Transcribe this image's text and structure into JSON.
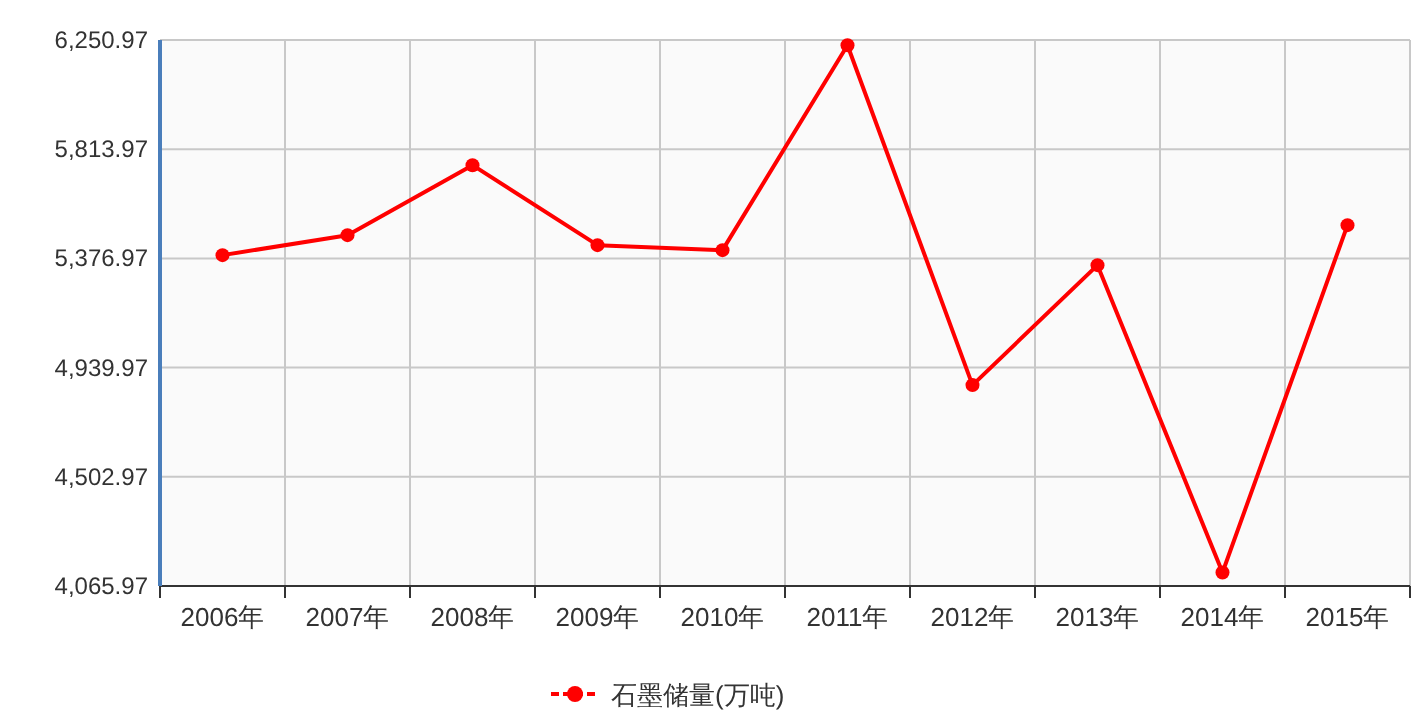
{
  "chart_data": {
    "type": "line",
    "categories": [
      "2006年",
      "2007年",
      "2008年",
      "2009年",
      "2010年",
      "2011年",
      "2012年",
      "2013年",
      "2014年",
      "2015年"
    ],
    "series": [
      {
        "name": "石墨储量(万吨)",
        "color": "#ff0000",
        "values": [
          5390,
          5470,
          5750,
          5430,
          5410,
          6230,
          4870,
          5350,
          4120,
          5510
        ]
      }
    ],
    "ylim": [
      4065.97,
      6250.97
    ],
    "yticks": [
      {
        "value": 4065.97,
        "label": "4,065.97"
      },
      {
        "value": 4502.97,
        "label": "4,502.97"
      },
      {
        "value": 4939.97,
        "label": "4,939.97"
      },
      {
        "value": 5376.97,
        "label": "5,376.97"
      },
      {
        "value": 5813.97,
        "label": "5,813.97"
      },
      {
        "value": 6250.97,
        "label": "6,250.97"
      }
    ],
    "grid": true,
    "legend": "bottom",
    "marker": "circle",
    "line_style": "solid"
  }
}
